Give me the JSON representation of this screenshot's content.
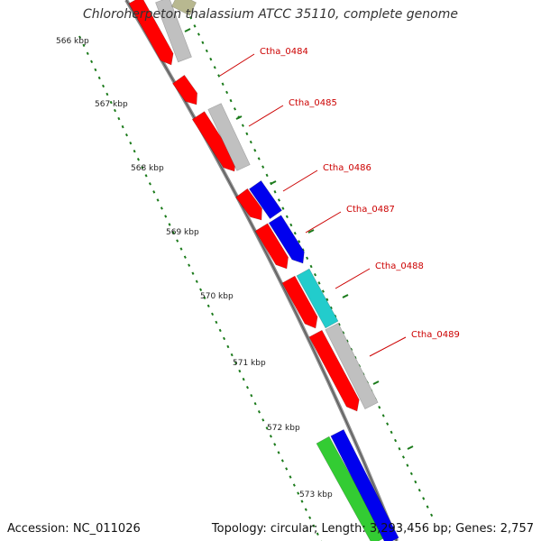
{
  "title": "Chloroherpeton thalassium ATCC 35110, complete genome",
  "accession": "Accession: NC_011026",
  "summary": "Topology: circular; Length: 3,293,456 bp; Genes: 2,757",
  "colors": {
    "backbone": "#8a8a8a",
    "tick": "#1a7a1a",
    "gene_label": "#cc0000",
    "red": "#ff0000",
    "gray": "#c0c0c0",
    "blue": "#0000ee",
    "cyan": "#22cccc",
    "green": "#33cc33",
    "olive": "#b8b890"
  },
  "scale_labels": [
    "566 kbp",
    "567 kbp",
    "568 kbp",
    "569 kbp",
    "570 kbp",
    "571 kbp",
    "572 kbp",
    "573 kbp"
  ],
  "gene_labels": [
    "Ctha_0484",
    "Ctha_0485",
    "Ctha_0486",
    "Ctha_0487",
    "Ctha_0488",
    "Ctha_0489"
  ]
}
